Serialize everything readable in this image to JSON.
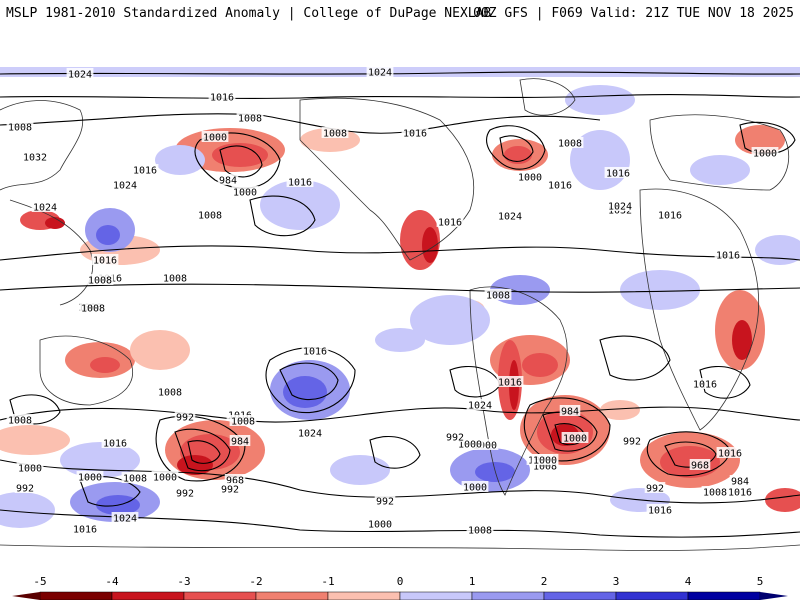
{
  "header": {
    "left_title": "MSLP 1981-2010 Standardized Anomaly | College of DuPage NEXLAB",
    "right_title": "00Z GFS | F069 Valid: 21Z TUE NOV 18 2025"
  },
  "map": {
    "projection": "cylindrical-global",
    "variable": "MSLP standardized anomaly with isobars",
    "isobar_labels": [
      "1024",
      "1024",
      "1016",
      "1008",
      "1008",
      "1032",
      "1016",
      "1024",
      "1024",
      "1016",
      "1008",
      "1000",
      "984",
      "1000",
      "1008",
      "1016",
      "1008",
      "1016",
      "1024",
      "1016",
      "1008",
      "1000",
      "1016",
      "1032",
      "1024",
      "1000",
      "1016",
      "1016",
      "1008",
      "1016",
      "1016",
      "1008",
      "1008",
      "1016",
      "1024",
      "1016",
      "1008",
      "1008",
      "1016",
      "1008",
      "992",
      "1008",
      "984",
      "1000",
      "968",
      "992",
      "1016",
      "1000",
      "1008",
      "1000",
      "992",
      "1024",
      "1016",
      "1024",
      "1000",
      "992",
      "1008",
      "992",
      "984",
      "992",
      "1000",
      "1016",
      "1024",
      "1016",
      "968",
      "984",
      "1016",
      "1008",
      "1016",
      "1000",
      "992",
      "1000",
      "1008",
      "1000",
      "1000",
      "992"
    ],
    "colors": {
      "land_outline": "#333333",
      "isobar": "#000000",
      "neg_5": "#7a0000",
      "neg_4": "#c8141e",
      "neg_3": "#e65050",
      "neg_2": "#f08070",
      "neg_1": "#fbc0b0",
      "pos_1": "#c8c8fa",
      "pos_2": "#9a9af0",
      "pos_3": "#6464e6",
      "pos_4": "#3232d2",
      "pos_5": "#0000a0"
    }
  },
  "legend": {
    "ticks": [
      "-5",
      "-4",
      "-3",
      "-2",
      "-1",
      "0",
      "1",
      "2",
      "3",
      "4",
      "5"
    ],
    "colors": [
      "#7a0000",
      "#c8141e",
      "#e65050",
      "#f08070",
      "#fbc0b0",
      "#ffffff",
      "#c8c8fa",
      "#9a9af0",
      "#6464e6",
      "#3232d2",
      "#0000a0"
    ],
    "min_arrow_color": "#5a0000",
    "max_arrow_color": "#000070"
  }
}
